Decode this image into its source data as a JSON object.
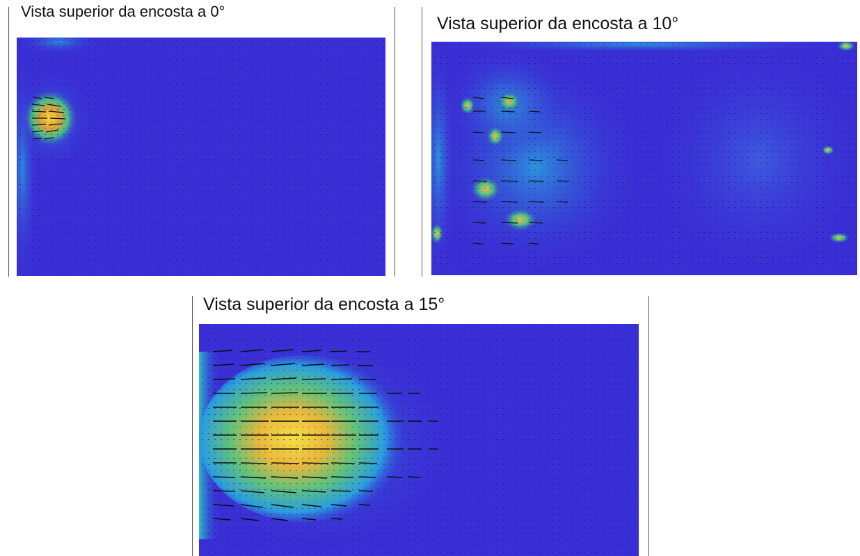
{
  "panels": [
    {
      "title": "Vista superior da encosta a 0°",
      "slope_deg": 0,
      "colors": {
        "background": "#3a2fd6",
        "mid": "#2a9ee0",
        "high": "#f5c84a"
      }
    },
    {
      "title": "Vista superior da encosta a 10°",
      "slope_deg": 10,
      "colors": {
        "background": "#3a2fd6",
        "mid": "#2a9ee0",
        "high": "#f5c84a"
      }
    },
    {
      "title": "Vista superior da encosta a 15°",
      "slope_deg": 15,
      "colors": {
        "background": "#3a2fd6",
        "mid": "#2a9ee0",
        "high": "#f5d84a"
      }
    }
  ]
}
